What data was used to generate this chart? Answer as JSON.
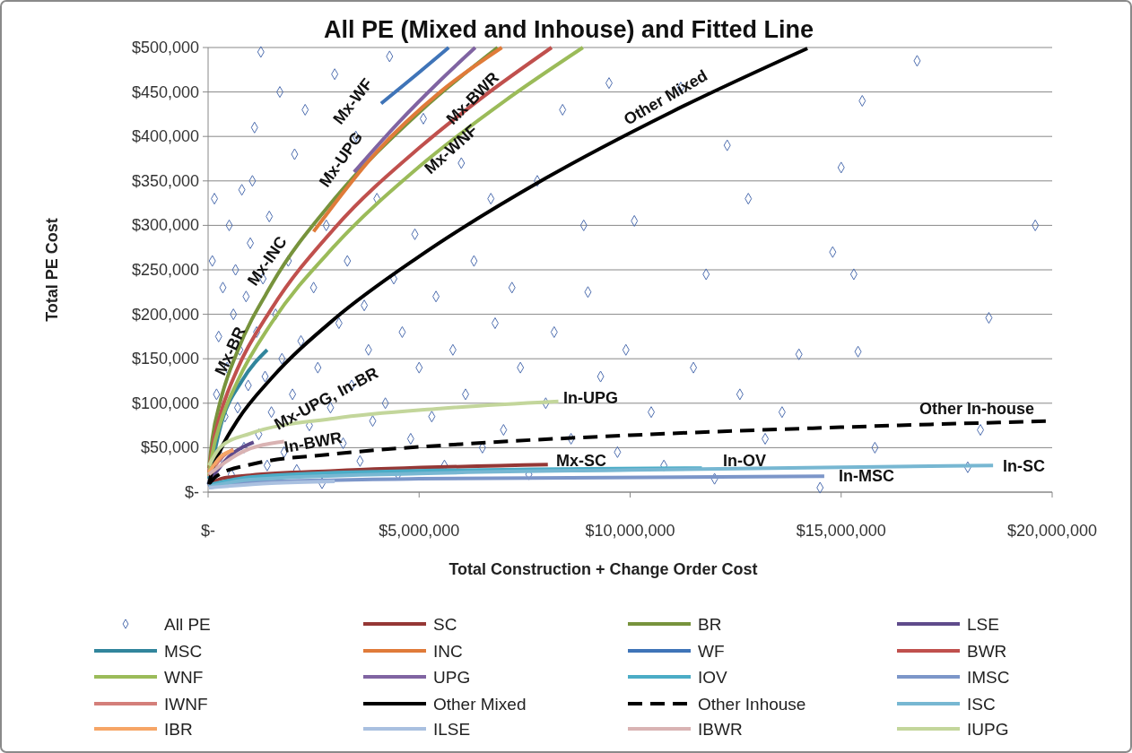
{
  "chart_data": {
    "type": "line",
    "title": "All PE (Mixed and Inhouse) and Fitted Line",
    "xlabel": "Total Construction + Change Order Cost",
    "ylabel": "Total PE Cost",
    "xlim": [
      0,
      20000000
    ],
    "xticks": [
      {
        "value": 0,
        "label": "$-"
      },
      {
        "value": 5000000,
        "label": "$5,000,000"
      },
      {
        "value": 10000000,
        "label": "$10,000,000"
      },
      {
        "value": 15000000,
        "label": "$15,000,000"
      },
      {
        "value": 20000000,
        "label": "$20,000,000"
      }
    ],
    "ylim": [
      0,
      500000
    ],
    "yticks": [
      {
        "value": 0,
        "label": "$-"
      },
      {
        "value": 50000,
        "label": "$50,000"
      },
      {
        "value": 100000,
        "label": "$100,000"
      },
      {
        "value": 150000,
        "label": "$150,000"
      },
      {
        "value": 200000,
        "label": "$200,000"
      },
      {
        "value": 250000,
        "label": "$250,000"
      },
      {
        "value": 300000,
        "label": "$300,000"
      },
      {
        "value": 350000,
        "label": "$350,000"
      },
      {
        "value": 400000,
        "label": "$400,000"
      },
      {
        "value": 450000,
        "label": "$450,000"
      },
      {
        "value": 500000,
        "label": "$500,000"
      }
    ],
    "grid": "y",
    "legend": "bottom",
    "series": [
      {
        "name": "All PE",
        "type": "scatter",
        "marker": "diamond",
        "color": "#4f6fb0",
        "x": [
          50000,
          100000,
          150000,
          200000,
          250000,
          300000,
          350000,
          400000,
          450000,
          500000,
          550000,
          600000,
          650000,
          700000,
          750000,
          800000,
          850000,
          900000,
          950000,
          1000000,
          1050000,
          1100000,
          1150000,
          1200000,
          1250000,
          1300000,
          1350000,
          1400000,
          1450000,
          1500000,
          1600000,
          1700000,
          1750000,
          1800000,
          1900000,
          2000000,
          2050000,
          2100000,
          2200000,
          2300000,
          2400000,
          2500000,
          2600000,
          2700000,
          2800000,
          2900000,
          3000000,
          3100000,
          3200000,
          3300000,
          3400000,
          3500000,
          3600000,
          3700000,
          3800000,
          3900000,
          4000000,
          4200000,
          4300000,
          4400000,
          4500000,
          4600000,
          4800000,
          4900000,
          5000000,
          5100000,
          5300000,
          5400000,
          5600000,
          5800000,
          6000000,
          6100000,
          6300000,
          6500000,
          6700000,
          6800000,
          7000000,
          7200000,
          7400000,
          7600000,
          7800000,
          8000000,
          8200000,
          8400000,
          8600000,
          8900000,
          9000000,
          9300000,
          9500000,
          9700000,
          9900000,
          10100000,
          10500000,
          10800000,
          11200000,
          11500000,
          11800000,
          12000000,
          12300000,
          12600000,
          12800000,
          13200000,
          13600000,
          14000000,
          14500000,
          14800000,
          15000000,
          15300000,
          15400000,
          15500000,
          15800000,
          16800000,
          18300000,
          18500000,
          19600000,
          18000000
        ],
        "values": [
          10000,
          260000,
          330000,
          110000,
          175000,
          40000,
          230000,
          85000,
          140000,
          300000,
          20000,
          200000,
          250000,
          95000,
          160000,
          340000,
          50000,
          220000,
          120000,
          280000,
          350000,
          410000,
          180000,
          65000,
          495000,
          240000,
          130000,
          30000,
          310000,
          90000,
          200000,
          450000,
          150000,
          45000,
          260000,
          110000,
          380000,
          25000,
          170000,
          430000,
          75000,
          230000,
          140000,
          10000,
          300000,
          95000,
          470000,
          190000,
          55000,
          260000,
          120000,
          400000,
          35000,
          210000,
          160000,
          80000,
          330000,
          100000,
          490000,
          240000,
          20000,
          180000,
          60000,
          290000,
          140000,
          420000,
          85000,
          220000,
          30000,
          160000,
          370000,
          110000,
          260000,
          50000,
          330000,
          190000,
          70000,
          230000,
          140000,
          20000,
          350000,
          100000,
          180000,
          430000,
          60000,
          300000,
          225000,
          130000,
          460000,
          45000,
          160000,
          305000,
          90000,
          30000,
          455000,
          140000,
          245000,
          15000,
          390000,
          110000,
          330000,
          60000,
          90000,
          155000,
          5000,
          270000,
          365000,
          245000,
          158000,
          440000,
          50000,
          485000,
          70000,
          196000,
          300000,
          28000
        ]
      },
      {
        "name": "SC",
        "color": "#953735",
        "x": [
          20000,
          300000,
          1000000,
          3000000,
          8050000
        ],
        "values": [
          8000,
          15000,
          19000,
          24000,
          31000
        ]
      },
      {
        "name": "BR",
        "color": "#77933c",
        "x": [
          20000,
          100000,
          300000,
          700000,
          1500000,
          3000000,
          5000000,
          6860000
        ],
        "values": [
          27000,
          60000,
          104000,
          159000,
          233000,
          330000,
          427000,
          500000
        ]
      },
      {
        "name": "LSE",
        "color": "#5f4b8b",
        "x": [
          20000,
          500000,
          1080000
        ],
        "values": [
          12000,
          40000,
          56000
        ]
      },
      {
        "name": "MSC",
        "color": "#31859c",
        "x": [
          20000,
          300000,
          800000,
          1400000
        ],
        "values": [
          15000,
          75000,
          125000,
          160000
        ]
      },
      {
        "name": "INC",
        "color": "#e07b39",
        "x": [
          2500000,
          4000000,
          5500000,
          6960000
        ],
        "values": [
          293000,
          383000,
          450000,
          500000
        ]
      },
      {
        "name": "WF",
        "color": "#3f74b8",
        "x": [
          4100000,
          5000000,
          5700000
        ],
        "values": [
          437000,
          472000,
          500000
        ]
      },
      {
        "name": "BWR",
        "color": "#c0504d",
        "x": [
          20000,
          100000,
          300000,
          700000,
          1500000,
          3000000,
          5000000,
          6500000,
          8140000
        ],
        "values": [
          22000,
          50000,
          89000,
          139000,
          206000,
          297000,
          387000,
          444000,
          500000
        ]
      },
      {
        "name": "WNF",
        "color": "#9bbb59",
        "x": [
          20000,
          100000,
          300000,
          700000,
          1500000,
          3000000,
          5000000,
          7000000,
          8880000
        ],
        "values": [
          18000,
          43000,
          79000,
          125000,
          190000,
          277000,
          366000,
          439000,
          500000
        ]
      },
      {
        "name": "UPG",
        "color": "#8064a2",
        "x": [
          3460000,
          4500000,
          5500000,
          6330000
        ],
        "values": [
          360000,
          415000,
          463000,
          500000
        ]
      },
      {
        "name": "IOV",
        "color": "#4bacc6",
        "x": [
          20000,
          1000000,
          4000000,
          11700000
        ],
        "values": [
          8000,
          17000,
          23000,
          27000
        ]
      },
      {
        "name": "IMSC",
        "color": "#7c96c9",
        "x": [
          20000,
          1000000,
          5000000,
          14600000
        ],
        "values": [
          5000,
          11000,
          15000,
          18000
        ]
      },
      {
        "name": "IWNF",
        "color": "#d47f7a",
        "x": [
          20000,
          300000,
          600000
        ],
        "values": [
          18000,
          38000,
          48000
        ]
      },
      {
        "name": "Other Mixed",
        "color": "#000000",
        "x": [
          20000,
          100000,
          300000,
          700000,
          1500000,
          3000000,
          5000000,
          8000000,
          11000000,
          14200000
        ],
        "values": [
          9000,
          25000,
          48000,
          81000,
          128000,
          195000,
          265000,
          353000,
          428000,
          499000
        ]
      },
      {
        "name": "Other Inhouse",
        "color": "#000000",
        "line_style": "dashed",
        "x": [
          20000,
          200000,
          1000000,
          3000000,
          6000000,
          10000000,
          15000000,
          20000000
        ],
        "values": [
          9000,
          18000,
          31000,
          43000,
          54000,
          64000,
          73000,
          80000
        ]
      },
      {
        "name": "ISC",
        "color": "#77b7d2",
        "x": [
          20000,
          1000000,
          5000000,
          10000000,
          18600000
        ],
        "values": [
          6000,
          14000,
          21000,
          25000,
          30000
        ]
      },
      {
        "name": "IBR",
        "color": "#f6a566",
        "x": [
          20000,
          300000,
          600000
        ],
        "values": [
          22000,
          40000,
          47000
        ]
      },
      {
        "name": "ILSE",
        "color": "#a9c0e0",
        "x": [
          20000,
          1500000,
          3000000
        ],
        "values": [
          5000,
          10000,
          12000
        ]
      },
      {
        "name": "IBWR",
        "color": "#d9b3b3",
        "x": [
          20000,
          800000,
          1800000
        ],
        "values": [
          20000,
          45000,
          57000
        ]
      },
      {
        "name": "IUPG",
        "color": "#c3d69b",
        "x": [
          20000,
          300000,
          1000000,
          3000000,
          5500000,
          8300000
        ],
        "values": [
          30000,
          51000,
          66000,
          83000,
          94000,
          102000
        ]
      }
    ],
    "annotations": [
      "Mx-WF",
      "Mx-UPG",
      "Mx-BWR",
      "Mx-WNF",
      "Other Mixed",
      "Mx-INC",
      "Mx-BR",
      "Mx-UPG, In-BR",
      "In-BWR",
      "In-UPG",
      "Other In-house",
      "Mx-SC",
      "In-OV",
      "In-MSC",
      "In-SC"
    ]
  }
}
